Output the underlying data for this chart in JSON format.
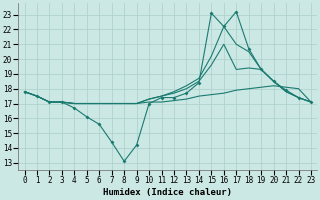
{
  "xlabel": "Humidex (Indice chaleur)",
  "background_color": "#cce8e4",
  "grid_color": "#aacfcb",
  "line_color": "#1a7a70",
  "xlim": [
    -0.5,
    23.5
  ],
  "ylim": [
    12.5,
    23.8
  ],
  "yticks": [
    13,
    14,
    15,
    16,
    17,
    18,
    19,
    20,
    21,
    22,
    23
  ],
  "xticks": [
    0,
    1,
    2,
    3,
    4,
    5,
    6,
    7,
    8,
    9,
    10,
    11,
    12,
    13,
    14,
    15,
    16,
    17,
    18,
    19,
    20,
    21,
    22,
    23
  ],
  "line1_x": [
    0,
    1,
    2,
    3,
    4,
    5,
    6,
    7,
    8,
    9,
    10,
    11,
    12,
    13,
    14,
    15,
    16,
    17,
    18,
    19,
    20,
    21,
    22,
    23
  ],
  "line1_y": [
    17.8,
    17.5,
    17.1,
    17.1,
    16.7,
    16.1,
    15.6,
    14.4,
    13.1,
    14.2,
    17.0,
    17.4,
    17.4,
    17.7,
    18.4,
    23.1,
    22.2,
    23.2,
    20.7,
    19.3,
    18.5,
    17.9,
    17.4,
    17.1
  ],
  "line2_x": [
    0,
    1,
    2,
    3,
    4,
    5,
    6,
    7,
    8,
    9,
    10,
    11,
    12,
    13,
    14,
    15,
    16,
    17,
    18,
    19,
    20,
    21,
    22,
    23
  ],
  "line2_y": [
    17.8,
    17.5,
    17.1,
    17.1,
    17.0,
    17.0,
    17.0,
    17.0,
    17.0,
    17.0,
    17.1,
    17.1,
    17.2,
    17.3,
    17.5,
    17.6,
    17.7,
    17.9,
    18.0,
    18.1,
    18.2,
    18.1,
    18.0,
    17.1
  ],
  "line3_x": [
    0,
    1,
    2,
    3,
    4,
    5,
    6,
    7,
    8,
    9,
    10,
    11,
    12,
    13,
    14,
    15,
    16,
    17,
    18,
    19,
    20,
    21,
    22,
    23
  ],
  "line3_y": [
    17.8,
    17.5,
    17.1,
    17.1,
    17.0,
    17.0,
    17.0,
    17.0,
    17.0,
    17.0,
    17.3,
    17.5,
    17.7,
    18.0,
    18.5,
    19.6,
    21.0,
    19.3,
    19.4,
    19.3,
    18.5,
    17.8,
    17.4,
    17.1
  ],
  "line4_x": [
    0,
    1,
    2,
    3,
    4,
    5,
    6,
    7,
    8,
    9,
    10,
    11,
    12,
    13,
    14,
    15,
    16,
    17,
    18,
    19,
    20,
    21,
    22,
    23
  ],
  "line4_y": [
    17.8,
    17.5,
    17.1,
    17.1,
    17.0,
    17.0,
    17.0,
    17.0,
    17.0,
    17.0,
    17.3,
    17.5,
    17.8,
    18.2,
    18.7,
    20.2,
    22.2,
    21.0,
    20.5,
    19.3,
    18.5,
    17.8,
    17.4,
    17.1
  ]
}
